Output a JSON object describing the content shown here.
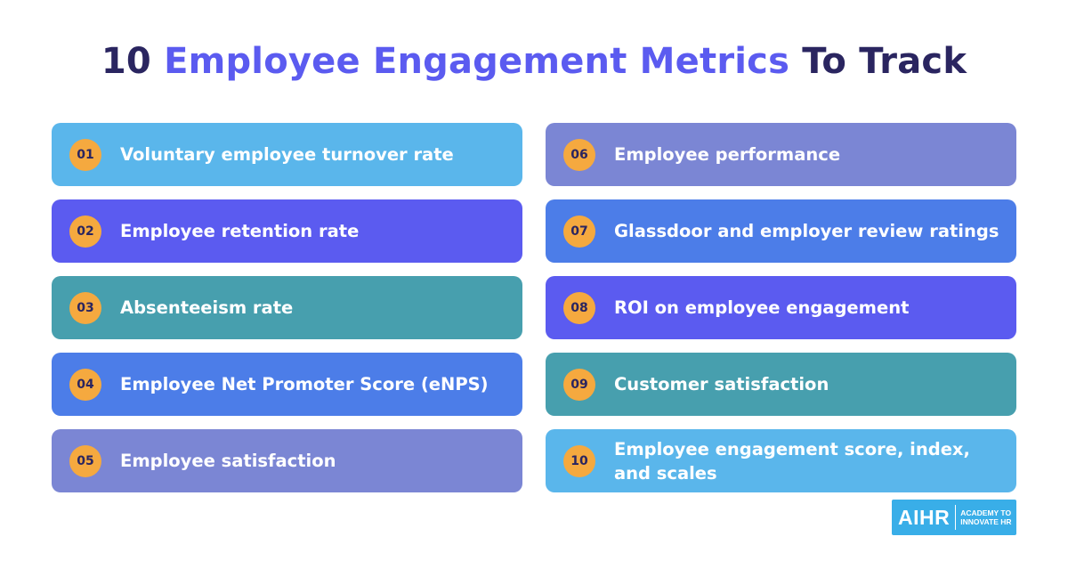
{
  "title": {
    "number": "10",
    "highlight": "Employee Engagement Metrics",
    "rest": "To Track"
  },
  "metrics": [
    {
      "number": "01",
      "label": "Voluntary employee turnover rate",
      "color": "#5ab6eb"
    },
    {
      "number": "02",
      "label": "Employee retention rate",
      "color": "#5b5bf0"
    },
    {
      "number": "03",
      "label": "Absenteeism rate",
      "color": "#479fae"
    },
    {
      "number": "04",
      "label": "Employee Net Promoter Score (eNPS)",
      "color": "#4c7de8"
    },
    {
      "number": "05",
      "label": "Employee satisfaction",
      "color": "#7b86d4"
    },
    {
      "number": "06",
      "label": "Employee performance",
      "color": "#7b86d4"
    },
    {
      "number": "07",
      "label": "Glassdoor and employer review ratings",
      "color": "#4c7de8"
    },
    {
      "number": "08",
      "label": "ROI on employee engagement",
      "color": "#5b5bf0"
    },
    {
      "number": "09",
      "label": "Customer satisfaction",
      "color": "#479fae"
    },
    {
      "number": "10",
      "label": "Employee engagement score, index, and scales",
      "color": "#5ab6eb"
    }
  ],
  "colors": {
    "badge": "#f5a93f",
    "title_dark": "#2a2560",
    "title_accent": "#5b5bf0"
  },
  "logo": {
    "main": "AIHR",
    "sub_line1": "ACADEMY TO",
    "sub_line2": "INNOVATE HR"
  }
}
